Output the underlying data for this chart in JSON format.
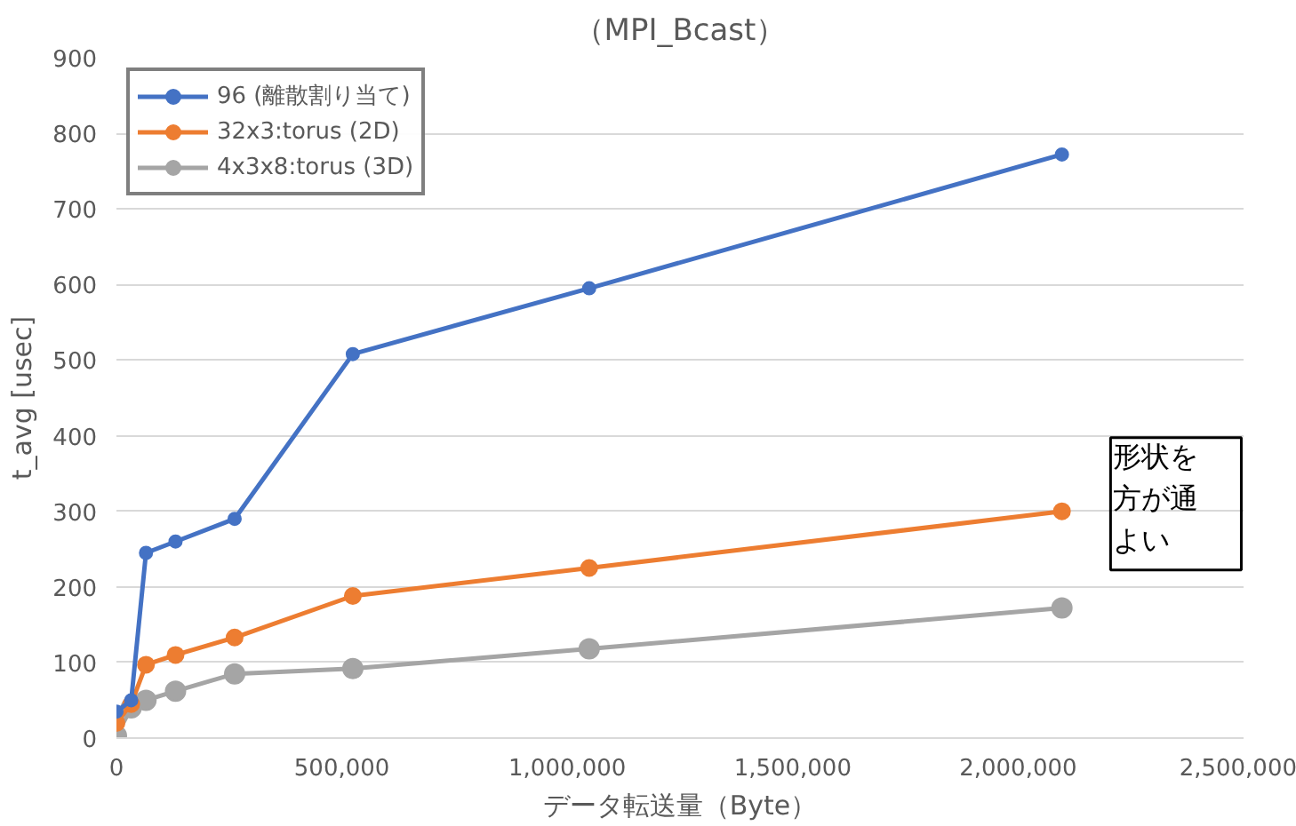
{
  "chart_data": {
    "type": "line",
    "title": "（MPI_Bcast）",
    "xlabel": "データ転送量（Byte）",
    "ylabel": "t_avg [usec]",
    "x": [
      0,
      32768,
      65536,
      131072,
      262144,
      524288,
      1048576,
      2097152
    ],
    "series": [
      {
        "name": "96 (離散割り当て)",
        "color": "#4472c4",
        "values": [
          35,
          50,
          245,
          260,
          290,
          508,
          595,
          772
        ]
      },
      {
        "name": "32x3:torus (2D)",
        "color": "#ed7d31",
        "values": [
          20,
          45,
          97,
          110,
          133,
          188,
          225,
          300
        ]
      },
      {
        "name": "4x3x8:torus (3D)",
        "color": "#a5a5a5",
        "values": [
          3,
          40,
          50,
          62,
          85,
          92,
          118,
          172
        ]
      }
    ],
    "xlim": [
      0,
      2500000
    ],
    "xticks": [
      {
        "value": 0,
        "label": "0"
      },
      {
        "value": 500000,
        "label": "500,000"
      },
      {
        "value": 1000000,
        "label": "1,000,000"
      },
      {
        "value": 1500000,
        "label": "1,500,000"
      },
      {
        "value": 2000000,
        "label": "2,000,000"
      },
      {
        "value": 2500000,
        "label": "2,500,000"
      }
    ],
    "ylim": [
      0,
      900
    ],
    "yticks": [
      0,
      100,
      200,
      300,
      400,
      500,
      600,
      700,
      800,
      900
    ],
    "grid": "y",
    "legend": "top left",
    "marker": "circle",
    "line_style": "solid",
    "annotations": [
      "形状を",
      "方が通",
      "よい"
    ]
  }
}
